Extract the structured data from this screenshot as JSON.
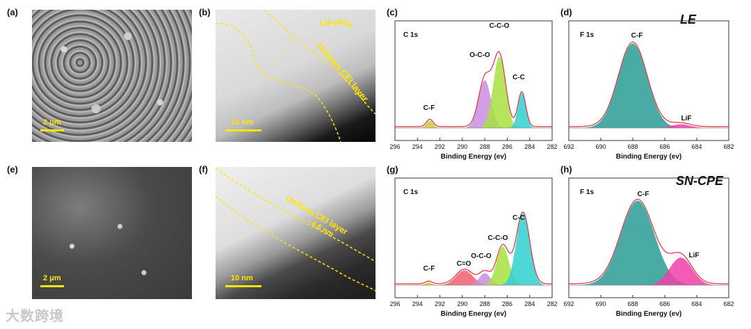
{
  "panels": {
    "a": {
      "label": "(a)",
      "scale": "2 μm"
    },
    "b": {
      "label": "(b)",
      "scale": "10 nm",
      "material": "LiFePO",
      "material_sub": "4",
      "layer_text": "Uneven CEI layer"
    },
    "c": {
      "label": "(c)",
      "core": "C 1s",
      "xlabel": "Binding Energy (ev)",
      "ticks": [
        "296",
        "294",
        "292",
        "290",
        "288",
        "286",
        "284",
        "282"
      ],
      "peaks": [
        "C-F",
        "O-C-O",
        "C-C-O",
        "C-C"
      ]
    },
    "d": {
      "label": "(d)",
      "core": "F 1s",
      "xlabel": "Binding Energy (ev)",
      "tag": "LE",
      "ticks": [
        "692",
        "690",
        "688",
        "686",
        "684",
        "682"
      ],
      "peaks": [
        "C-F",
        "LiF"
      ]
    },
    "e": {
      "label": "(e)",
      "scale": "2 μm"
    },
    "f": {
      "label": "(f)",
      "scale": "10 nm",
      "layer_text": "Uniform CEI layer",
      "thickness": "~4.6 nm"
    },
    "g": {
      "label": "(g)",
      "core": "C 1s",
      "xlabel": "Binding Energy (ev)",
      "ticks": [
        "296",
        "294",
        "292",
        "290",
        "288",
        "286",
        "284",
        "282"
      ],
      "peaks": [
        "C-F",
        "C=O",
        "O-C-O",
        "C-C-O",
        "C-C"
      ]
    },
    "h": {
      "label": "(h)",
      "core": "F 1s",
      "xlabel": "Binding Energy (ev)",
      "tag": "SN-CPE",
      "ticks": [
        "692",
        "690",
        "688",
        "686",
        "684",
        "682"
      ],
      "peaks": [
        "C-F",
        "LiF"
      ]
    }
  },
  "watermark": "大数跨境",
  "colors": {
    "cf": "#d4c43a",
    "oco": "#c88ee0",
    "cco": "#a8e040",
    "cc": "#30d0d0",
    "co": "#f06070",
    "teal": "#2a9c94",
    "lif_pink": "#f040a8",
    "envelope": "#e03040",
    "scale": "#ffe600"
  },
  "chart_data": [
    {
      "type": "area",
      "id": "c",
      "title": "C 1s (LE)",
      "xlabel": "Binding Energy (ev)",
      "xlim": [
        296,
        282
      ],
      "ylim": [
        0,
        1.0
      ],
      "series": [
        {
          "name": "C-F",
          "center": 292.9,
          "sigma": 0.3,
          "amp": 0.08,
          "color": "#d4c43a"
        },
        {
          "name": "O-C-O",
          "center": 288.0,
          "sigma": 0.55,
          "amp": 0.52,
          "color": "#c88ee0"
        },
        {
          "name": "C-C-O",
          "center": 286.7,
          "sigma": 0.55,
          "amp": 0.78,
          "color": "#a8e040"
        },
        {
          "name": "C-C",
          "center": 284.7,
          "sigma": 0.35,
          "amp": 0.38,
          "color": "#30d0d0"
        }
      ]
    },
    {
      "type": "area",
      "id": "d",
      "title": "F 1s (LE)",
      "xlabel": "Binding Energy (ev)",
      "xlim": [
        692,
        682
      ],
      "ylim": [
        0,
        1.0
      ],
      "series": [
        {
          "name": "C-F",
          "center": 688.0,
          "sigma": 0.9,
          "amp": 0.92,
          "color": "#2a9c94"
        },
        {
          "name": "LiF",
          "center": 685.0,
          "sigma": 0.6,
          "amp": 0.04,
          "color": "#f040a8"
        }
      ]
    },
    {
      "type": "area",
      "id": "g",
      "title": "C 1s (SN-CPE)",
      "xlabel": "Binding Energy (ev)",
      "xlim": [
        296,
        282
      ],
      "ylim": [
        0,
        1.0
      ],
      "series": [
        {
          "name": "C-F",
          "center": 293.0,
          "sigma": 0.3,
          "amp": 0.03,
          "color": "#d4c43a"
        },
        {
          "name": "C=O",
          "center": 289.8,
          "sigma": 0.75,
          "amp": 0.16,
          "color": "#f06070"
        },
        {
          "name": "O-C-O",
          "center": 288.0,
          "sigma": 0.5,
          "amp": 0.13,
          "color": "#c88ee0"
        },
        {
          "name": "C-C-O",
          "center": 286.4,
          "sigma": 0.55,
          "amp": 0.42,
          "color": "#a8e040"
        },
        {
          "name": "C-C",
          "center": 284.6,
          "sigma": 0.6,
          "amp": 0.78,
          "color": "#30d0d0"
        }
      ]
    },
    {
      "type": "area",
      "id": "h",
      "title": "F 1s (SN-CPE)",
      "xlabel": "Binding Energy (ev)",
      "xlim": [
        692,
        682
      ],
      "ylim": [
        0,
        1.0
      ],
      "series": [
        {
          "name": "C-F",
          "center": 687.7,
          "sigma": 1.05,
          "amp": 0.92,
          "color": "#2a9c94"
        },
        {
          "name": "LiF",
          "center": 685.0,
          "sigma": 0.7,
          "amp": 0.3,
          "color": "#f040a8"
        }
      ]
    }
  ]
}
